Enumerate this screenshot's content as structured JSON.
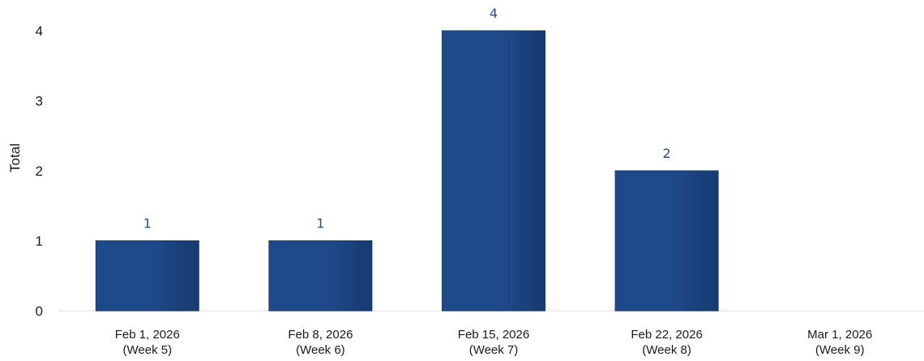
{
  "chart_data": {
    "type": "bar",
    "categories": [
      [
        "Feb 1, 2026",
        "(Week 5)"
      ],
      [
        "Feb 8, 2026",
        "(Week 6)"
      ],
      [
        "Feb 15, 2026",
        "(Week 7)"
      ],
      [
        "Feb 22, 2026",
        "(Week 8)"
      ],
      [
        "Mar 1, 2026",
        "(Week 9)"
      ]
    ],
    "values": [
      1,
      1,
      4,
      2,
      0
    ],
    "data_labels": [
      "1",
      "1",
      "4",
      "2",
      ""
    ],
    "ylabel": "Total",
    "ylim": [
      0,
      4
    ],
    "yticks": [
      0,
      1,
      2,
      3,
      4
    ],
    "grid": false,
    "legend": false,
    "colors": {
      "bar": "#1f4a8a",
      "bar_dark": "#173a70",
      "data_label": "#2a4f8f",
      "axis": "#dddddd"
    }
  }
}
